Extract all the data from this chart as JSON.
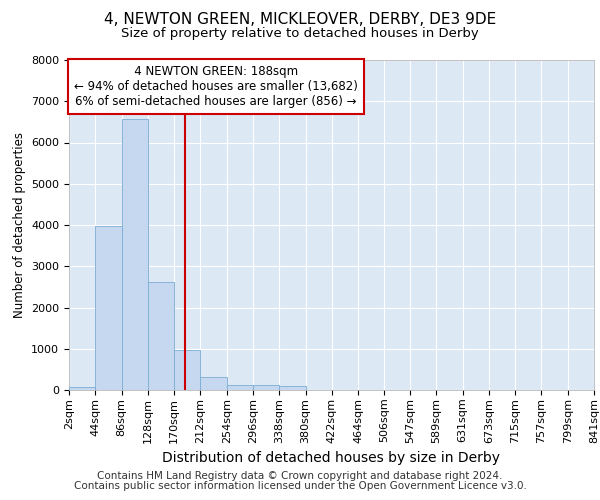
{
  "title": "4, NEWTON GREEN, MICKLEOVER, DERBY, DE3 9DE",
  "subtitle": "Size of property relative to detached houses in Derby",
  "xlabel": "Distribution of detached houses by size in Derby",
  "ylabel": "Number of detached properties",
  "footer_line1": "Contains HM Land Registry data © Crown copyright and database right 2024.",
  "footer_line2": "Contains public sector information licensed under the Open Government Licence v3.0.",
  "annotation_title": "4 NEWTON GREEN: 188sqm",
  "annotation_line1": "← 94% of detached houses are smaller (13,682)",
  "annotation_line2": "6% of semi-detached houses are larger (856) →",
  "property_size": 188,
  "bar_edges": [
    2,
    44,
    86,
    128,
    170,
    212,
    254,
    296,
    338,
    380,
    422,
    464,
    506,
    547,
    589,
    631,
    673,
    715,
    757,
    799,
    841
  ],
  "bar_heights": [
    75,
    3980,
    6560,
    2620,
    960,
    310,
    130,
    110,
    95,
    0,
    0,
    0,
    0,
    0,
    0,
    0,
    0,
    0,
    0,
    0
  ],
  "bar_color": "#c5d8f0",
  "bar_edge_color": "#7aadd4",
  "red_line_color": "#cc0000",
  "annotation_box_color": "#cc0000",
  "background_color": "#ffffff",
  "plot_bg_color": "#dde8f5",
  "grid_color": "#ffffff",
  "ylim": [
    0,
    8000
  ],
  "yticks": [
    0,
    1000,
    2000,
    3000,
    4000,
    5000,
    6000,
    7000,
    8000
  ],
  "title_fontsize": 11,
  "subtitle_fontsize": 9.5,
  "xlabel_fontsize": 10,
  "ylabel_fontsize": 8.5,
  "tick_fontsize": 8,
  "annotation_fontsize": 8.5,
  "footer_fontsize": 7.5
}
